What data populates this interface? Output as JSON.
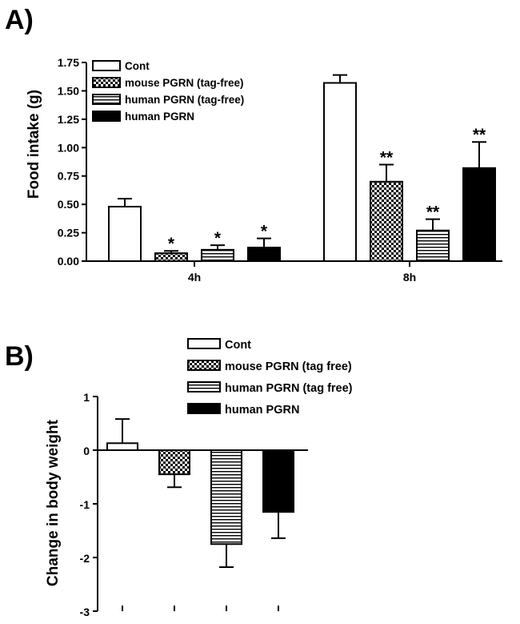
{
  "chart_data": [
    {
      "id": "A",
      "panel_label": "A)",
      "type": "bar",
      "ylabel": "Food intake (g)",
      "ylim": [
        0,
        1.75
      ],
      "yticks": [
        "0.00",
        "0.25",
        "0.50",
        "0.75",
        "1.00",
        "1.25",
        "1.50",
        "1.75"
      ],
      "categories": [
        "4h",
        "8h"
      ],
      "series": [
        {
          "name": "Cont",
          "pattern": "white",
          "values": [
            0.48,
            1.57
          ],
          "errors": [
            0.07,
            0.07
          ],
          "significance": [
            "",
            ""
          ]
        },
        {
          "name": "mouse PGRN (tag-free)",
          "pattern": "checker",
          "values": [
            0.07,
            0.7
          ],
          "errors": [
            0.02,
            0.15
          ],
          "significance": [
            "*",
            "**"
          ]
        },
        {
          "name": "human PGRN (tag-free)",
          "pattern": "hstripe",
          "values": [
            0.1,
            0.27
          ],
          "errors": [
            0.04,
            0.1
          ],
          "significance": [
            "*",
            "**"
          ]
        },
        {
          "name": "human PGRN",
          "pattern": "black",
          "values": [
            0.12,
            0.82
          ],
          "errors": [
            0.08,
            0.23
          ],
          "significance": [
            "*",
            "**"
          ]
        }
      ],
      "legend_position": "top-left"
    },
    {
      "id": "B",
      "panel_label": "B)",
      "type": "bar",
      "ylabel": "Change in body weight",
      "ylim": [
        -3,
        1
      ],
      "yticks": [
        "1",
        "0",
        "-1",
        "-2",
        "-3"
      ],
      "categories": [
        "",
        "",
        "",
        ""
      ],
      "series": [
        {
          "name": "Cont",
          "pattern": "white",
          "value": 0.13,
          "error": 0.45
        },
        {
          "name": "mouse PGRN (tag free)",
          "pattern": "checker",
          "value": -0.45,
          "error": 0.24
        },
        {
          "name": "human PGRN (tag free)",
          "pattern": "hstripe",
          "value": -1.75,
          "error": 0.43
        },
        {
          "name": "human PGRN",
          "pattern": "black",
          "value": -1.15,
          "error": 0.49
        }
      ],
      "legend_position": "top"
    }
  ]
}
